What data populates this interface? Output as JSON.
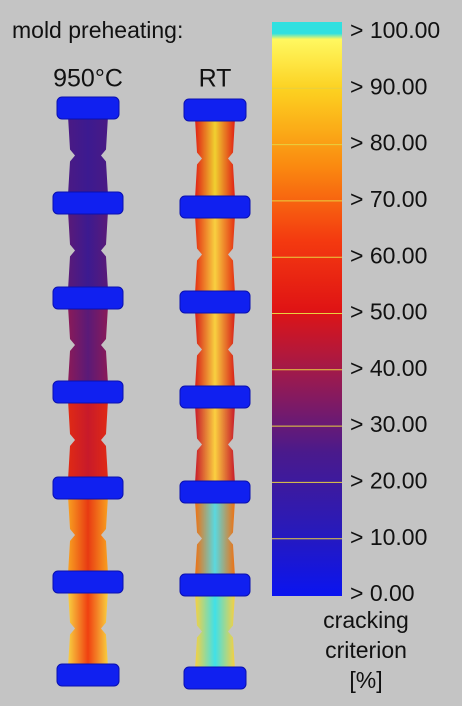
{
  "header": {
    "title": "mold preheating:",
    "columns": [
      "950°C",
      "RT"
    ]
  },
  "legend": {
    "ticks": [
      "> 100.00",
      "> 90.00",
      "> 80.00",
      "> 70.00",
      "> 60.00",
      "> 50.00",
      "> 40.00",
      "> 30.00",
      "> 20.00",
      "> 10.00",
      "> 0.00"
    ],
    "label": [
      "cracking",
      "criterion",
      "[%]"
    ]
  }
}
